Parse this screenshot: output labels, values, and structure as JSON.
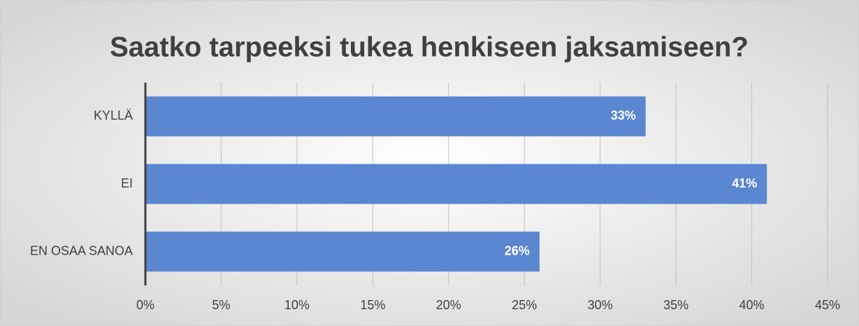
{
  "chart_data": {
    "type": "bar",
    "orientation": "horizontal",
    "title": "Saatko tarpeeksi tukea henkiseen jaksamiseen?",
    "categories": [
      "KYLLÄ",
      "EI",
      "EN OSAA SANOA"
    ],
    "values": [
      33,
      41,
      26
    ],
    "value_labels": [
      "33%",
      "41%",
      "26%"
    ],
    "color": "#5b86d0",
    "xlim": [
      0,
      45
    ],
    "xticks": [
      {
        "value": 0,
        "label": "0%"
      },
      {
        "value": 5,
        "label": "5%"
      },
      {
        "value": 10,
        "label": "10%"
      },
      {
        "value": 15,
        "label": "15%"
      },
      {
        "value": 20,
        "label": "20%"
      },
      {
        "value": 25,
        "label": "25%"
      },
      {
        "value": 30,
        "label": "30%"
      },
      {
        "value": 35,
        "label": "35%"
      },
      {
        "value": 40,
        "label": "40%"
      },
      {
        "value": 45,
        "label": "45%"
      }
    ],
    "grid": true
  }
}
